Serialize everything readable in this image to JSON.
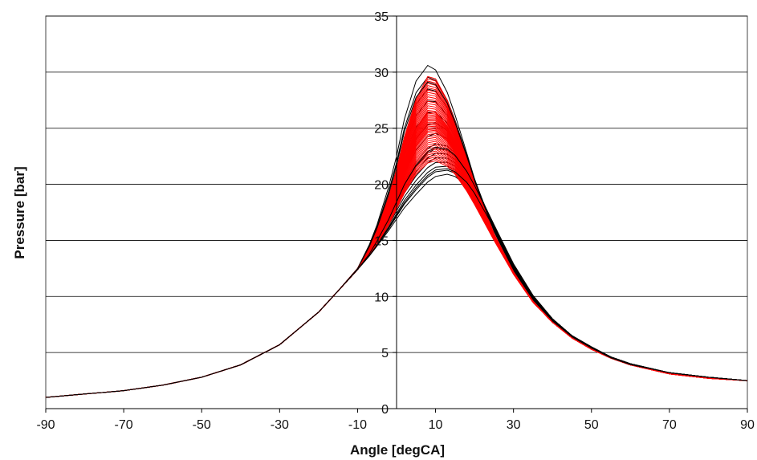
{
  "chart_data": {
    "type": "line",
    "title": "",
    "xlabel": "Angle [degCA]",
    "ylabel": "Pressure [bar]",
    "xlim": [
      -90,
      90
    ],
    "ylim": [
      0,
      35
    ],
    "x_ticks": [
      -90,
      -70,
      -50,
      -30,
      -10,
      10,
      30,
      50,
      70,
      90
    ],
    "y_ticks": [
      0,
      5,
      10,
      15,
      20,
      25,
      30,
      35
    ],
    "x_tick_labels": [
      "-90",
      "-70",
      "-50",
      "-30",
      "-10",
      "10",
      "30",
      "50",
      "70",
      "90"
    ],
    "y_tick_labels": [
      "0",
      "5",
      "10",
      "15",
      "20",
      "25",
      "30",
      "35"
    ],
    "grid": "horizontal",
    "legend": "none",
    "series_colors": {
      "set_a": "#000000",
      "set_b": "#ff0000"
    },
    "x": [
      -90,
      -80,
      -70,
      -60,
      -50,
      -40,
      -30,
      -20,
      -15,
      -10,
      -7,
      -5,
      -2,
      0,
      2,
      5,
      8,
      10,
      13,
      15,
      18,
      20,
      25,
      30,
      35,
      40,
      45,
      50,
      55,
      60,
      70,
      80,
      90
    ],
    "series": [
      {
        "color": "#000000",
        "values": [
          1.0,
          1.3,
          1.6,
          2.1,
          2.8,
          3.9,
          5.7,
          8.6,
          10.5,
          12.5,
          14.6,
          16.4,
          19.8,
          22.5,
          25.8,
          29.2,
          30.6,
          30.2,
          28.2,
          26.2,
          22.8,
          20.5,
          15.8,
          12.3,
          9.7,
          7.8,
          6.4,
          5.4,
          4.5,
          3.9,
          3.2,
          2.8,
          2.5
        ]
      },
      {
        "color": "#000000",
        "values": [
          1.0,
          1.3,
          1.6,
          2.1,
          2.8,
          3.9,
          5.7,
          8.6,
          10.5,
          12.4,
          13.8,
          15.0,
          17.0,
          18.6,
          20.2,
          22.0,
          23.2,
          23.6,
          23.4,
          22.8,
          21.3,
          20.0,
          16.4,
          12.9,
          10.1,
          8.0,
          6.5,
          5.5,
          4.6,
          4.0,
          3.2,
          2.8,
          2.5
        ]
      },
      {
        "color": "#000000",
        "values": [
          1.0,
          1.3,
          1.6,
          2.1,
          2.8,
          3.9,
          5.7,
          8.6,
          10.5,
          12.4,
          13.6,
          14.5,
          15.9,
          16.9,
          17.9,
          19.1,
          20.2,
          20.7,
          20.9,
          20.7,
          19.9,
          19.0,
          16.0,
          12.8,
          10.0,
          8.0,
          6.5,
          5.5,
          4.6,
          4.0,
          3.2,
          2.8,
          2.5
        ]
      },
      {
        "color": "#ff0000",
        "values": [
          1.0,
          1.3,
          1.6,
          2.1,
          2.8,
          3.9,
          5.7,
          8.6,
          10.5,
          12.5,
          14.4,
          15.9,
          18.9,
          21.3,
          24.2,
          27.6,
          29.6,
          29.4,
          27.5,
          25.6,
          22.4,
          20.1,
          15.6,
          12.2,
          9.6,
          7.7,
          6.3,
          5.3,
          4.5,
          3.9,
          3.1,
          2.7,
          2.5
        ]
      },
      {
        "color": "#ff0000",
        "values": [
          1.0,
          1.3,
          1.6,
          2.1,
          2.8,
          3.9,
          5.7,
          8.6,
          10.5,
          12.4,
          14.1,
          15.4,
          17.8,
          19.8,
          22.2,
          25.0,
          26.6,
          26.5,
          25.2,
          23.9,
          21.3,
          19.4,
          15.3,
          12.1,
          9.5,
          7.7,
          6.3,
          5.3,
          4.5,
          3.9,
          3.1,
          2.7,
          2.5
        ]
      },
      {
        "color": "#ff0000",
        "values": [
          1.0,
          1.3,
          1.6,
          2.1,
          2.8,
          3.9,
          5.7,
          8.6,
          10.5,
          12.4,
          13.9,
          15.1,
          17.1,
          18.9,
          20.9,
          23.3,
          24.6,
          24.7,
          23.8,
          22.8,
          20.7,
          19.0,
          15.2,
          12.0,
          9.5,
          7.7,
          6.3,
          5.3,
          4.5,
          3.9,
          3.1,
          2.7,
          2.5
        ]
      },
      {
        "color": "#ff0000",
        "values": [
          1.0,
          1.3,
          1.6,
          2.1,
          2.8,
          3.9,
          5.7,
          8.6,
          10.5,
          12.4,
          13.7,
          14.7,
          16.4,
          17.8,
          19.2,
          20.9,
          21.9,
          22.1,
          21.6,
          20.9,
          19.4,
          18.2,
          15.0,
          12.0,
          9.5,
          7.7,
          6.3,
          5.3,
          4.5,
          3.9,
          3.1,
          2.7,
          2.5
        ]
      }
    ]
  }
}
